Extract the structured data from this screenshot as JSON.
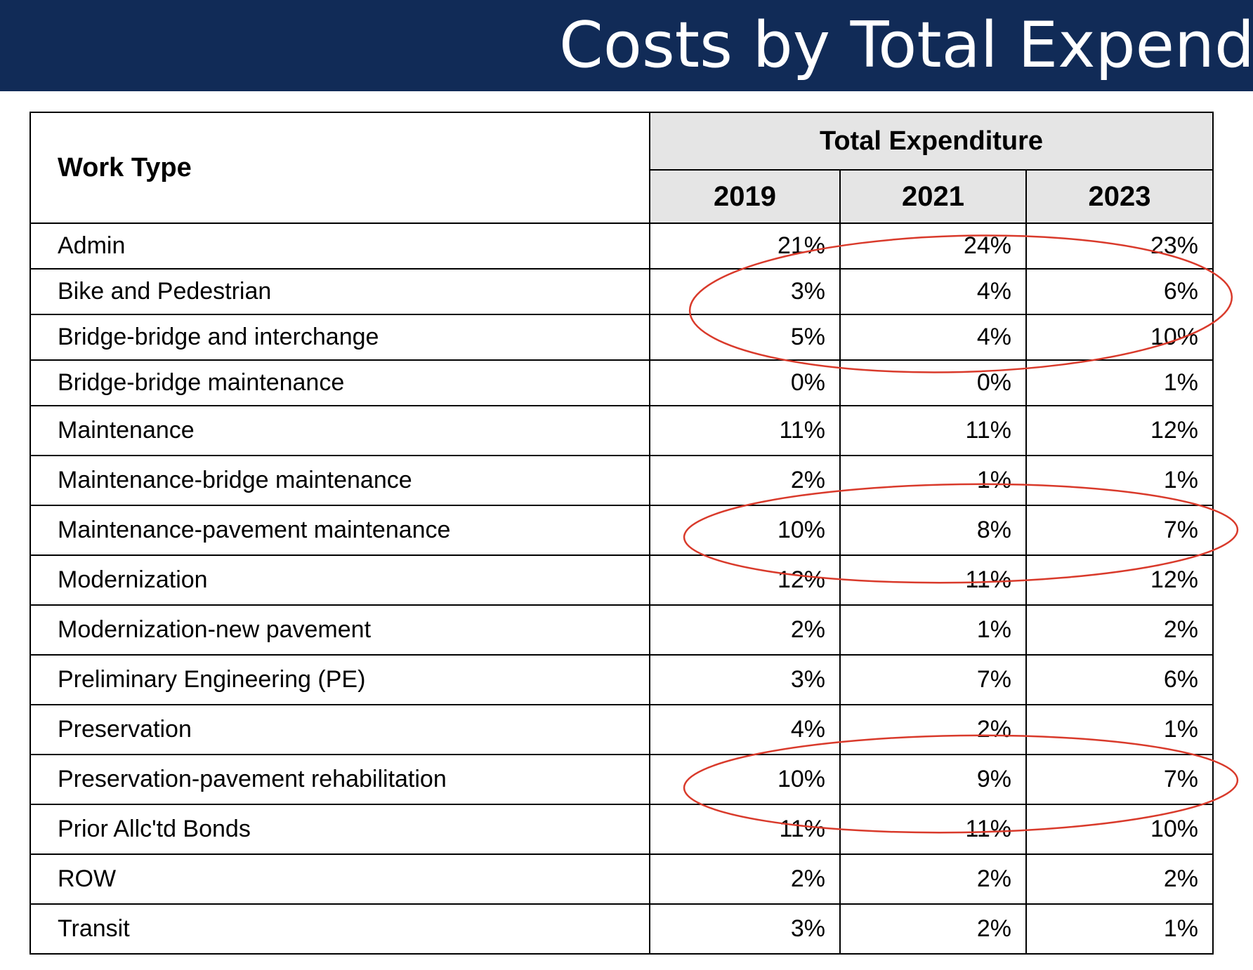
{
  "header": {
    "title": "Costs by Total Expenditure"
  },
  "table": {
    "work_type_header": "Work Type",
    "group_header": "Total Expenditure",
    "years": [
      "2019",
      "2021",
      "2023"
    ],
    "rows": [
      {
        "label": "Admin",
        "values": [
          "21%",
          "24%",
          "23%"
        ]
      },
      {
        "label": "Bike and Pedestrian",
        "values": [
          "3%",
          "4%",
          "6%"
        ]
      },
      {
        "label": "Bridge-bridge and interchange",
        "values": [
          "5%",
          "4%",
          "10%"
        ]
      },
      {
        "label": "Bridge-bridge maintenance",
        "values": [
          "0%",
          "0%",
          "1%"
        ]
      },
      {
        "label": "Maintenance",
        "values": [
          "11%",
          "11%",
          "12%"
        ]
      },
      {
        "label": "Maintenance-bridge maintenance",
        "values": [
          "2%",
          "1%",
          "1%"
        ]
      },
      {
        "label": "Maintenance-pavement maintenance",
        "values": [
          "10%",
          "8%",
          "7%"
        ]
      },
      {
        "label": "Modernization",
        "values": [
          "12%",
          "11%",
          "12%"
        ]
      },
      {
        "label": "Modernization-new pavement",
        "values": [
          "2%",
          "1%",
          "2%"
        ]
      },
      {
        "label": "Preliminary Engineering (PE)",
        "values": [
          "3%",
          "7%",
          "6%"
        ]
      },
      {
        "label": "Preservation",
        "values": [
          "4%",
          "2%",
          "1%"
        ]
      },
      {
        "label": "Preservation-pavement rehabilitation",
        "values": [
          "10%",
          "9%",
          "7%"
        ]
      },
      {
        "label": "Prior Allc'td Bonds",
        "values": [
          "11%",
          "11%",
          "10%"
        ]
      },
      {
        "label": "ROW",
        "values": [
          "2%",
          "2%",
          "2%"
        ]
      },
      {
        "label": "Transit",
        "values": [
          "3%",
          "2%",
          "1%"
        ]
      }
    ]
  },
  "annotations": {
    "color": "#d93a2b",
    "highlighted_rows": [
      "Bike and Pedestrian",
      "Bridge-bridge and interchange",
      "Maintenance-pavement maintenance",
      "Preservation-pavement rehabilitation"
    ]
  },
  "colors": {
    "title_bar": "#112b57",
    "header_fill": "#e5e5e5"
  }
}
